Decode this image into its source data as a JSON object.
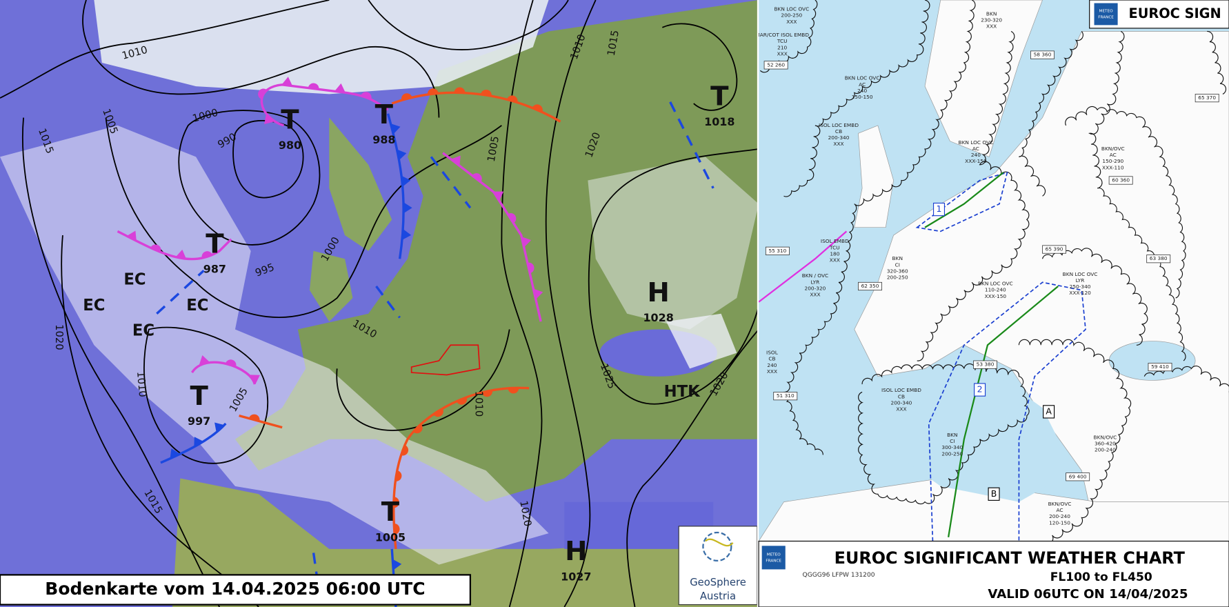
{
  "left_map": {
    "caption": "Bodenkarte vom 14.04.2025 06:00 UTC",
    "logo": [
      "GeoSphere",
      "Austria"
    ],
    "isobars": [
      "1010",
      "1005",
      "1015",
      "1000",
      "990",
      "995",
      "1000",
      "1020",
      "1010",
      "1015",
      "1005",
      "1010",
      "1005",
      "1010",
      "1015",
      "1020",
      "1025",
      "1020",
      "1020",
      "1010"
    ],
    "pressure_centers": [
      {
        "symbol": "T",
        "value": "980"
      },
      {
        "symbol": "T",
        "value": "988"
      },
      {
        "symbol": "T",
        "value": "987"
      },
      {
        "symbol": "T",
        "value": "997"
      },
      {
        "symbol": "T",
        "value": "1005"
      },
      {
        "symbol": "H",
        "value": "1027"
      },
      {
        "symbol": "T",
        "value": "1018"
      },
      {
        "symbol": "H",
        "value": "1028"
      }
    ],
    "air_mass_labels": [
      "EC",
      "EC",
      "EC",
      "EC",
      "HTK"
    ]
  },
  "right_chart": {
    "header": "EUROC SIGN",
    "provider": [
      "METEO",
      "FRANCE"
    ],
    "title": "EUROC SIGNIFICANT WEATHER CHART",
    "levels": "FL100 to FL450",
    "valid": "VALID 06UTC ON 14/04/2025",
    "code": "QGGG96 LFPW 131200",
    "areas": [
      "1",
      "2",
      "A",
      "B"
    ],
    "fl_boxes": [
      "52 260",
      "58 360",
      "60 360",
      "62 350",
      "55 310",
      "53 380",
      "63 380",
      "51 310",
      "69 400",
      "65 370",
      "59 410",
      "65 390"
    ],
    "cloud_labels": [
      [
        "BKN LOC OVC",
        "200-250",
        "XXX"
      ],
      [
        "MAR/COT ISOL EMBD",
        "TCU",
        "210",
        "XXX"
      ],
      [
        "BKN",
        "230-320",
        "XXX"
      ],
      [
        "ISOL LOC EMBD",
        "CB",
        "200-340",
        "XXX"
      ],
      [
        "BKN LOC OVC",
        "AC",
        "240",
        "150-150"
      ],
      [
        "BKN LOC OVC",
        "AC",
        "240",
        "XXX-150"
      ],
      [
        "ISOL EMBD",
        "TCU",
        "180",
        "XXX"
      ],
      [
        "BKN",
        "CI",
        "320-360",
        "200-250"
      ],
      [
        "BKN / OVC",
        "LYR",
        "200-320",
        "XXX"
      ],
      [
        "BKN/OVC",
        "AC",
        "150-290",
        "XXX-110"
      ],
      [
        "BKN LOC OVC",
        "110-240",
        "XXX-150"
      ],
      [
        "BKN LOC OVC",
        "LYR",
        "250-340",
        "XXX-120"
      ],
      [
        "ISOL LOC EMBD",
        "CB",
        "200-340",
        "XXX"
      ],
      [
        "BKN/OVC",
        "360-420",
        "200-240"
      ],
      [
        "BKN/OVC",
        "AC",
        "200-240",
        "120-150"
      ],
      [
        "ISOL",
        "CB",
        "240",
        "XXX"
      ],
      [
        "BKN",
        "CI",
        "300-340",
        "200-250"
      ]
    ]
  }
}
